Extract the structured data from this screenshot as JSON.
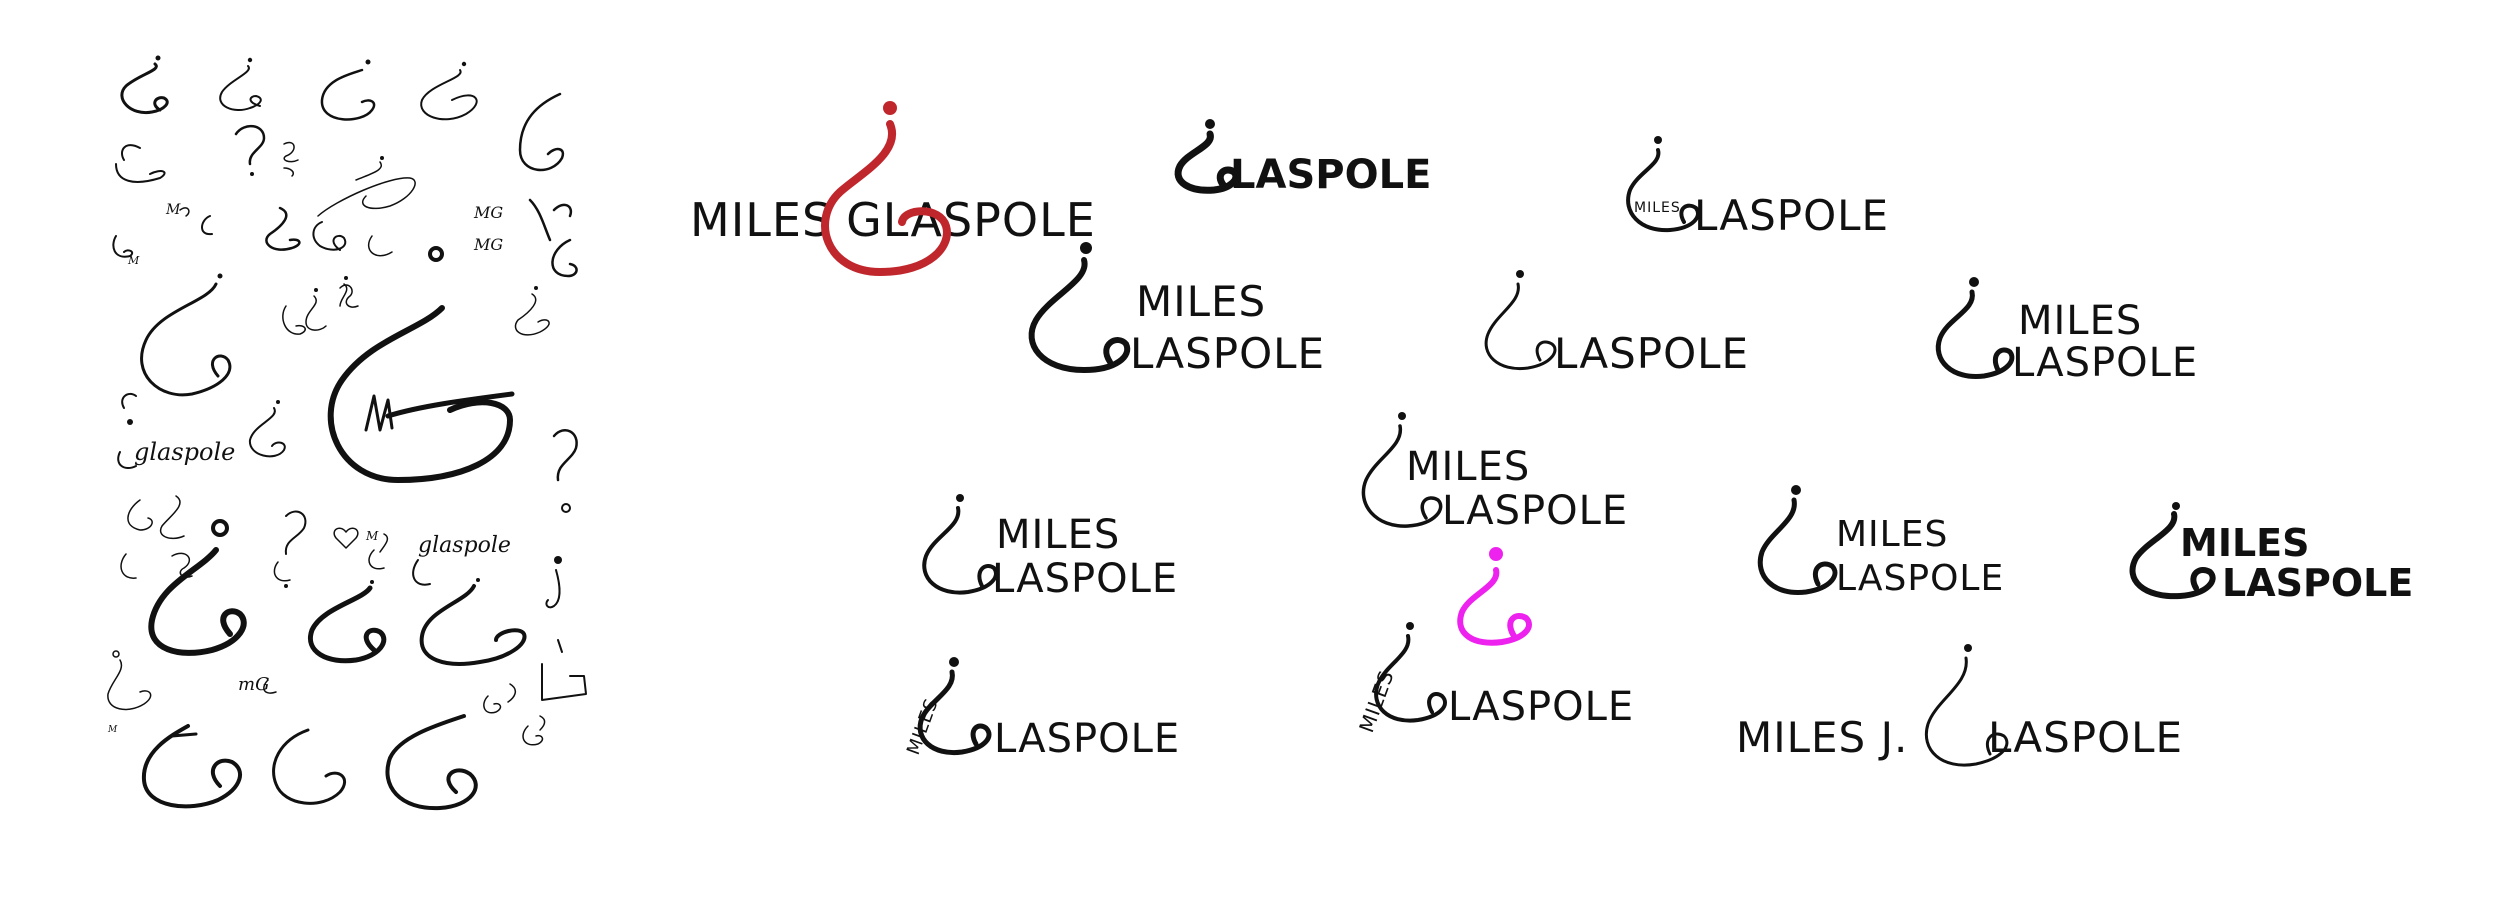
{
  "sketches": {
    "label_glaspole_1": "glaspole",
    "label_glaspole_2": "glaspole",
    "initials_1": "MG",
    "initials_2": "MG",
    "initials_3": "M",
    "initials_4": "mG",
    "initials_5": "M"
  },
  "logos": {
    "v1": {
      "first": "MILES",
      "last": "GLASPOLE",
      "accent": "#c0272d"
    },
    "v2": {
      "last": "LASPOLE"
    },
    "v3": {
      "first": "MILES",
      "last": "LASPOLE"
    },
    "v4": {
      "first": "MILES",
      "last": "LASPOLE"
    },
    "v5": {
      "last": "LASPOLE"
    },
    "v6": {
      "first": "MILES",
      "last": "LASPOLE"
    },
    "v7": {
      "first": "MILES",
      "last": "LASPOLE"
    },
    "v8": {
      "first": "MILES",
      "last": "LASPOLE"
    },
    "v9": {
      "first": "MILES",
      "last": "LASPOLE"
    },
    "v10": {
      "first": "MILES",
      "last": "LASPOLE"
    },
    "v11": {
      "first": "MILES",
      "last": "LASPOLE"
    },
    "v12": {
      "accent": "#ee22ee"
    },
    "v13": {
      "first": "MILES",
      "last": "LASPOLE"
    },
    "v14": {
      "first": "MILES J.",
      "last": "LASPOLE"
    }
  }
}
